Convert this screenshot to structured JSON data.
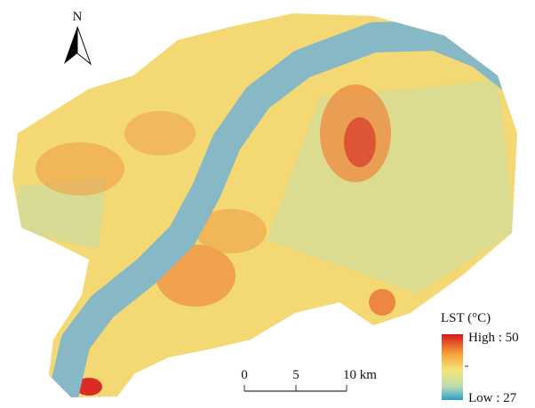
{
  "north_arrow": {
    "label": "N"
  },
  "legend": {
    "title": "LST (°C)",
    "high": "High : 50",
    "low": "Low : 27"
  },
  "scale_bar": {
    "labels": [
      "0",
      "5",
      "10 km"
    ]
  }
}
